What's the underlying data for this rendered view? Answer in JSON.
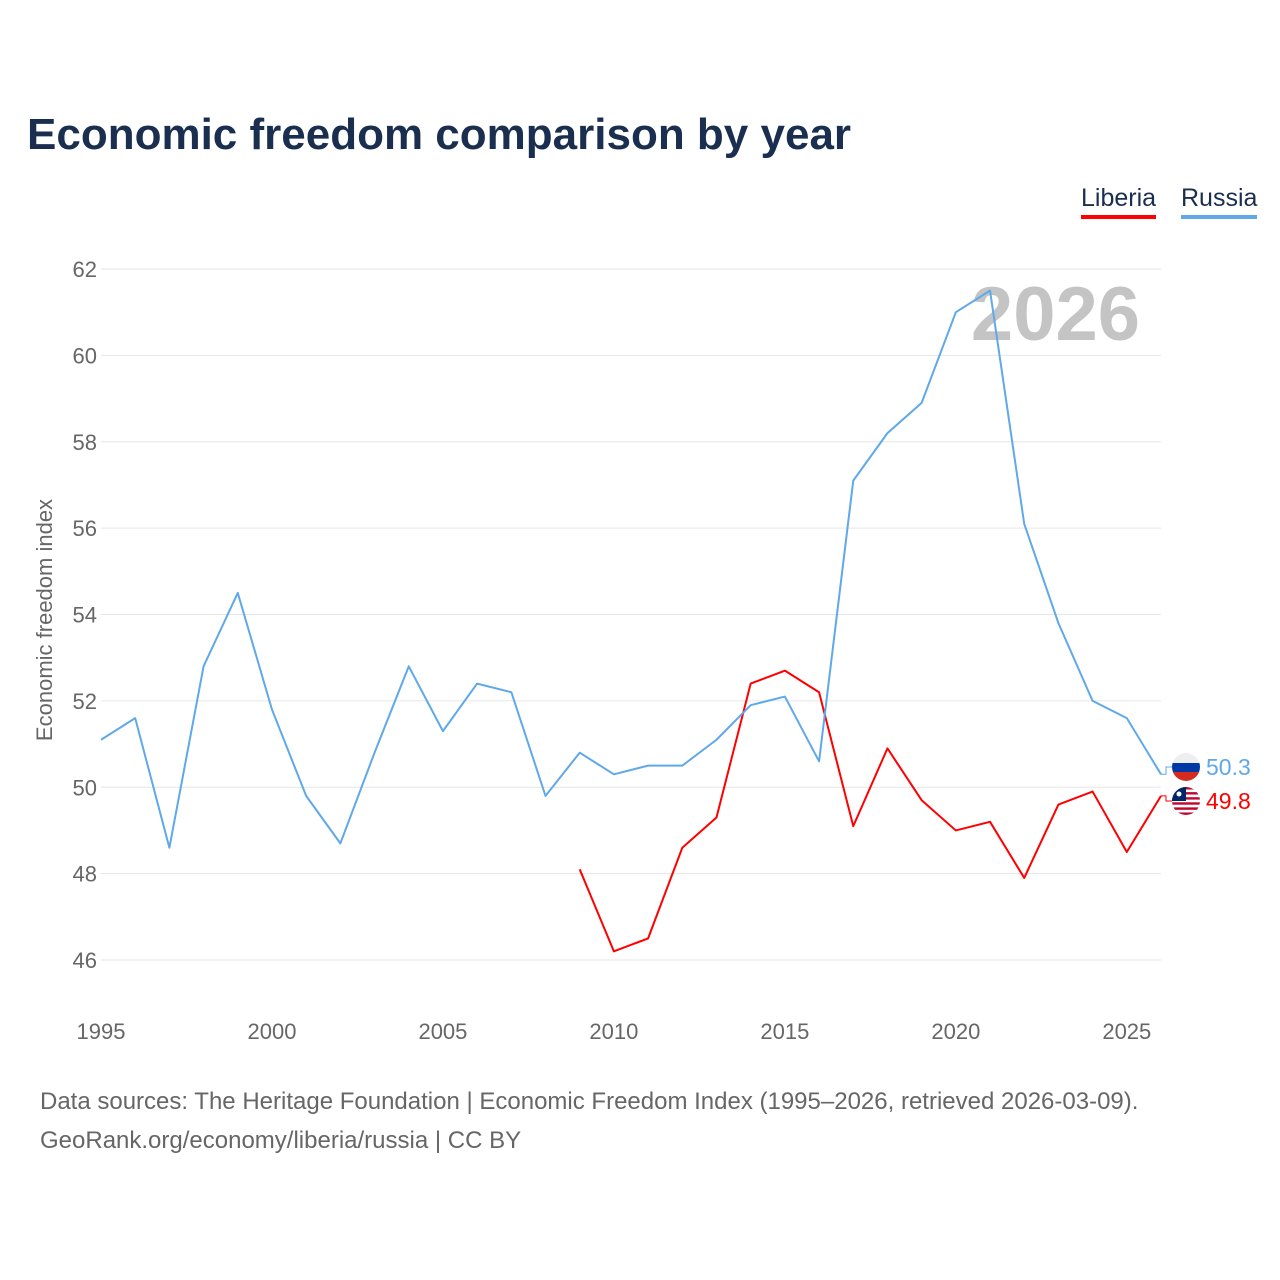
{
  "chart_data": {
    "type": "line",
    "title": "Economic freedom comparison by year",
    "xlabel": "",
    "ylabel": "Economic freedom index",
    "xlim": [
      1995,
      2026
    ],
    "ylim": [
      46,
      62
    ],
    "xticks": [
      1995,
      2000,
      2005,
      2010,
      2015,
      2020,
      2025
    ],
    "yticks": [
      46,
      48,
      50,
      52,
      54,
      56,
      58,
      60,
      62
    ],
    "grid": true,
    "legend_placement": "top-right",
    "watermark_year": "2026",
    "series": [
      {
        "name": "Liberia",
        "color": "#ff0000",
        "end_label": "49.8",
        "x": [
          2009,
          2010,
          2011,
          2012,
          2013,
          2014,
          2015,
          2016,
          2017,
          2018,
          2019,
          2020,
          2021,
          2022,
          2023,
          2024,
          2025,
          2026
        ],
        "values": [
          48.1,
          46.2,
          46.5,
          48.6,
          49.3,
          52.4,
          52.7,
          52.2,
          49.1,
          50.9,
          49.7,
          49.0,
          49.2,
          47.9,
          49.6,
          49.9,
          48.5,
          49.8
        ]
      },
      {
        "name": "Russia",
        "color": "#5fa8ea",
        "end_label": "50.3",
        "x": [
          1995,
          1996,
          1997,
          1998,
          1999,
          2000,
          2001,
          2002,
          2003,
          2004,
          2005,
          2006,
          2007,
          2008,
          2009,
          2010,
          2011,
          2012,
          2013,
          2014,
          2015,
          2016,
          2017,
          2018,
          2019,
          2020,
          2021,
          2022,
          2023,
          2024,
          2025,
          2026
        ],
        "values": [
          51.1,
          51.6,
          48.6,
          52.8,
          54.5,
          51.8,
          49.8,
          48.7,
          50.8,
          52.8,
          51.3,
          52.4,
          52.2,
          49.8,
          50.8,
          50.3,
          50.5,
          50.5,
          51.1,
          51.9,
          52.1,
          50.6,
          57.1,
          58.2,
          58.9,
          61.0,
          61.5,
          56.1,
          53.8,
          52.0,
          51.6,
          50.3
        ]
      }
    ]
  },
  "legend": {
    "liberia": "Liberia",
    "russia": "Russia"
  },
  "footer": {
    "line1": "Data sources: The Heritage Foundation | Economic Freedom Index (1995–2026, retrieved 2026-03-09).",
    "line2": "GeoRank.org/economy/liberia/russia | CC BY"
  }
}
